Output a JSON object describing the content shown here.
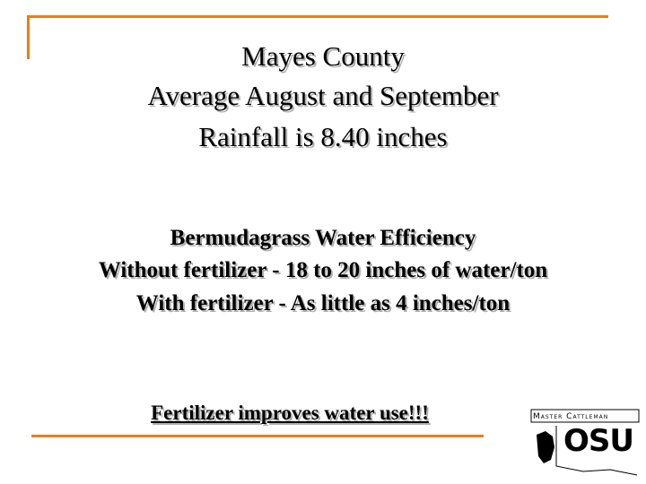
{
  "title": {
    "lines": [
      "Mayes County",
      "Average August and September",
      "Rainfall is 8.40 inches"
    ]
  },
  "body": {
    "lines": [
      "Bermudagrass Water Efficiency",
      "Without fertilizer - 18 to 20 inches of water/ton",
      "With fertilizer - As little as 4 inches/ton"
    ]
  },
  "conclusion": "Fertilizer improves water use!!!",
  "logo": {
    "program": "Master Cattleman",
    "school": "OSU"
  }
}
